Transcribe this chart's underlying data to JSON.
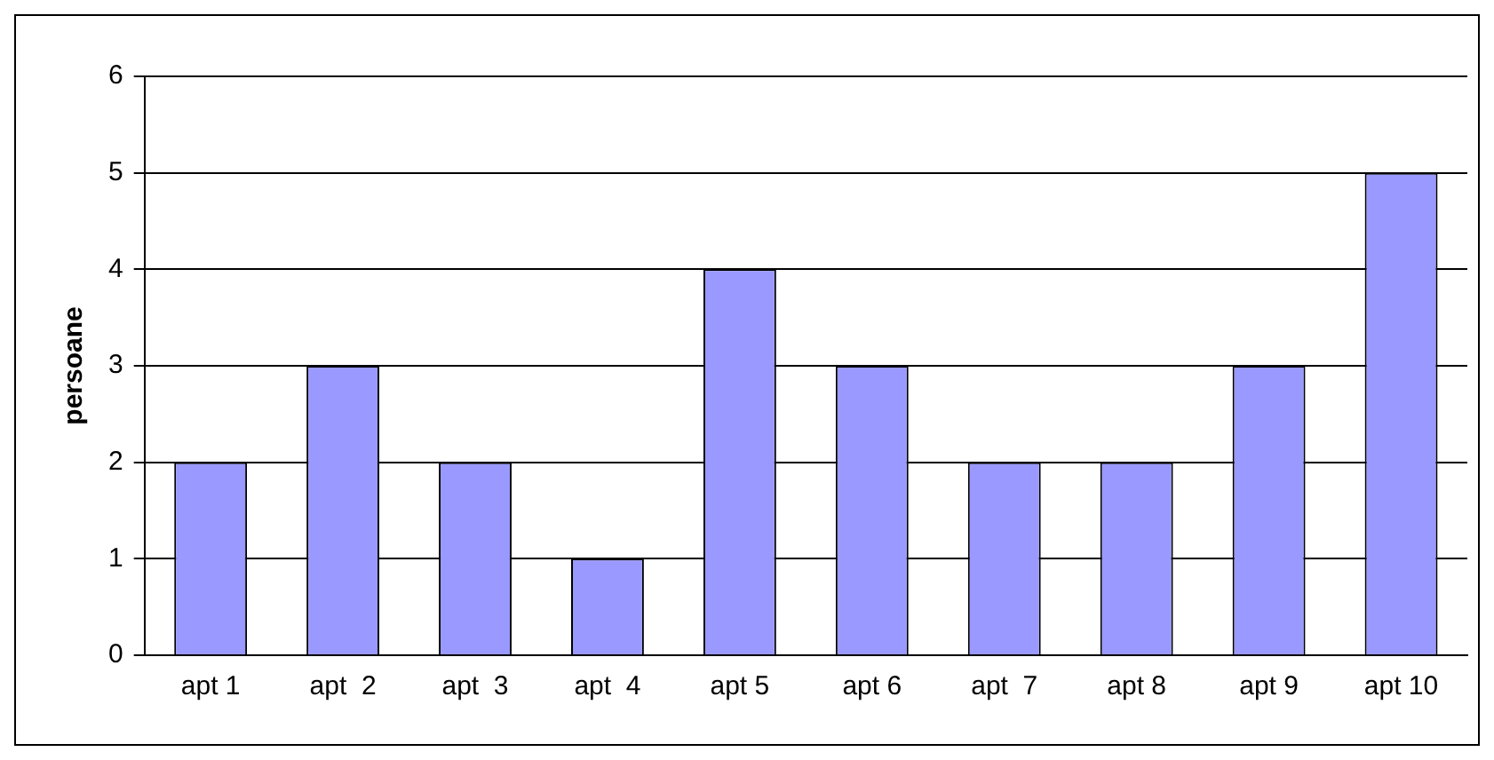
{
  "chart_data": {
    "type": "bar",
    "ylabel": "persoane",
    "categories": [
      "apt 1",
      "apt  2",
      "apt  3",
      "apt  4",
      "apt 5",
      "apt 6",
      "apt  7",
      "apt 8",
      "apt 9",
      "apt 10"
    ],
    "values": [
      2,
      3,
      2,
      1,
      4,
      3,
      2,
      2,
      3,
      5
    ],
    "color": "#9999ff",
    "ylim": [
      0,
      6
    ],
    "yticks": [
      0,
      1,
      2,
      3,
      4,
      5,
      6
    ],
    "grid": "y",
    "legend": false
  }
}
